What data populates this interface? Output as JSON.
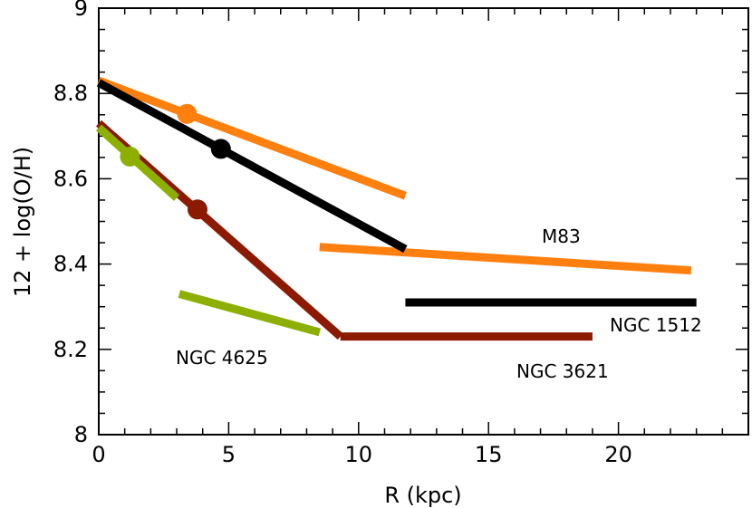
{
  "chart_data": {
    "type": "line",
    "xlabel": "R (kpc)",
    "ylabel": "12 + log(O/H)",
    "xlim": [
      0,
      25
    ],
    "ylim": [
      8,
      9
    ],
    "xticks": [
      0,
      5,
      10,
      15,
      20
    ],
    "yticks": [
      8,
      8.2,
      8.4,
      8.6,
      8.8,
      9
    ],
    "xtick_labels": [
      "0",
      "5",
      "10",
      "15",
      "20"
    ],
    "ytick_labels": [
      "8",
      "8.2",
      "8.4",
      "8.6",
      "8.8",
      "9"
    ],
    "grid": false,
    "series": [
      {
        "name": "M83",
        "label": "M83",
        "color": "#ff7f0f",
        "segments": [
          [
            [
              0,
              8.83
            ],
            [
              11.8,
              8.56
            ]
          ],
          [
            [
              8.5,
              8.44
            ],
            [
              22.8,
              8.385
            ]
          ]
        ],
        "markers": [
          [
            3.4,
            8.752
          ]
        ]
      },
      {
        "name": "NGC 1512",
        "label": "NGC 1512",
        "color": "#000000",
        "segments": [
          [
            [
              0,
              8.825
            ],
            [
              11.8,
              8.435
            ]
          ],
          [
            [
              11.8,
              8.31
            ],
            [
              23,
              8.31
            ]
          ]
        ],
        "markers": [
          [
            4.7,
            8.67
          ]
        ]
      },
      {
        "name": "NGC 3621",
        "label": "NGC 3621",
        "color": "#8b1a00",
        "segments": [
          [
            [
              0,
              8.73
            ],
            [
              9.3,
              8.23
            ]
          ],
          [
            [
              9.3,
              8.23
            ],
            [
              19,
              8.23
            ]
          ]
        ],
        "markers": [
          [
            3.8,
            8.528
          ]
        ]
      },
      {
        "name": "NGC 4625",
        "label": "NGC 4625",
        "color": "#8db000",
        "segments": [
          [
            [
              0,
              8.72
            ],
            [
              3,
              8.555
            ]
          ],
          [
            [
              3.1,
              8.33
            ],
            [
              8.5,
              8.24
            ]
          ]
        ],
        "markers": [
          [
            1.2,
            8.652
          ]
        ]
      }
    ]
  }
}
